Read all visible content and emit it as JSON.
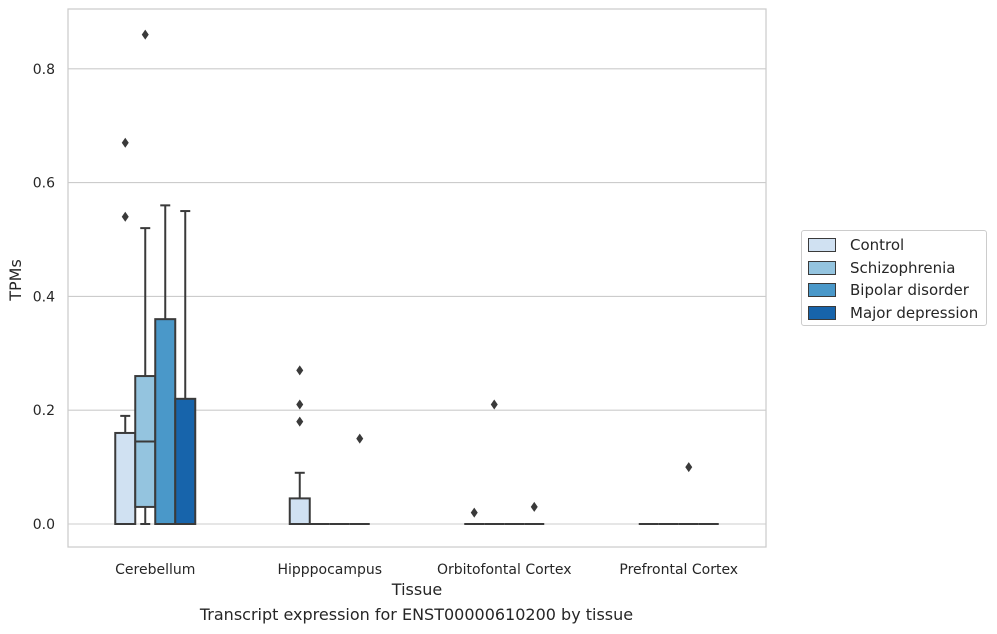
{
  "chart_data": {
    "type": "box",
    "categories": [
      "Cerebellum",
      "Hipppocampus",
      "Orbitofontal Cortex",
      "Prefrontal Cortex"
    ],
    "xlabel": "Tissue",
    "ylabel": "TPMs",
    "ylim": [
      -0.04,
      0.905
    ],
    "yticks": [
      0.0,
      0.2,
      0.4,
      0.6,
      0.8
    ],
    "ytick_labels": [
      "0.0",
      "0.2",
      "0.4",
      "0.6",
      "0.8"
    ],
    "grid": true,
    "legend_position": "right",
    "series": [
      {
        "name": "Control",
        "color": "#d0e1f2",
        "boxes": [
          {
            "q1": 0.0,
            "median": 0.0,
            "q3": 0.16,
            "whisker_low": 0.0,
            "whisker_high": 0.19,
            "outliers": [
              0.54,
              0.67
            ]
          },
          {
            "q1": 0.0,
            "median": 0.0,
            "q3": 0.045,
            "whisker_low": 0.0,
            "whisker_high": 0.09,
            "outliers": [
              0.18,
              0.21,
              0.27
            ]
          },
          {
            "q1": 0.0,
            "median": 0.0,
            "q3": 0.0,
            "whisker_low": 0.0,
            "whisker_high": 0.0,
            "outliers": [
              0.02
            ]
          },
          {
            "q1": 0.0,
            "median": 0.0,
            "q3": 0.0,
            "whisker_low": 0.0,
            "whisker_high": 0.0,
            "outliers": []
          }
        ]
      },
      {
        "name": "Schizophrenia",
        "color": "#94c4df",
        "boxes": [
          {
            "q1": 0.03,
            "median": 0.145,
            "q3": 0.26,
            "whisker_low": 0.0,
            "whisker_high": 0.52,
            "outliers": [
              0.86
            ]
          },
          {
            "q1": 0.0,
            "median": 0.0,
            "q3": 0.0,
            "whisker_low": 0.0,
            "whisker_high": 0.0,
            "outliers": []
          },
          {
            "q1": 0.0,
            "median": 0.0,
            "q3": 0.0,
            "whisker_low": 0.0,
            "whisker_high": 0.0,
            "outliers": [
              0.21
            ]
          },
          {
            "q1": 0.0,
            "median": 0.0,
            "q3": 0.0,
            "whisker_low": 0.0,
            "whisker_high": 0.0,
            "outliers": []
          }
        ]
      },
      {
        "name": "Bipolar disorder",
        "color": "#4a98c9",
        "boxes": [
          {
            "q1": 0.0,
            "median": 0.0,
            "q3": 0.36,
            "whisker_low": 0.0,
            "whisker_high": 0.56,
            "outliers": []
          },
          {
            "q1": 0.0,
            "median": 0.0,
            "q3": 0.0,
            "whisker_low": 0.0,
            "whisker_high": 0.0,
            "outliers": []
          },
          {
            "q1": 0.0,
            "median": 0.0,
            "q3": 0.0,
            "whisker_low": 0.0,
            "whisker_high": 0.0,
            "outliers": []
          },
          {
            "q1": 0.0,
            "median": 0.0,
            "q3": 0.0,
            "whisker_low": 0.0,
            "whisker_high": 0.0,
            "outliers": [
              0.1
            ]
          }
        ]
      },
      {
        "name": "Major depression",
        "color": "#1764ab",
        "boxes": [
          {
            "q1": 0.0,
            "median": 0.0,
            "q3": 0.22,
            "whisker_low": 0.0,
            "whisker_high": 0.55,
            "outliers": []
          },
          {
            "q1": 0.0,
            "median": 0.0,
            "q3": 0.0,
            "whisker_low": 0.0,
            "whisker_high": 0.0,
            "outliers": [
              0.15
            ]
          },
          {
            "q1": 0.0,
            "median": 0.0,
            "q3": 0.0,
            "whisker_low": 0.0,
            "whisker_high": 0.0,
            "outliers": [
              0.03
            ]
          },
          {
            "q1": 0.0,
            "median": 0.0,
            "q3": 0.0,
            "whisker_low": 0.0,
            "whisker_high": 0.0,
            "outliers": []
          }
        ]
      }
    ]
  },
  "caption": "Transcript expression for ENST00000610200 by tissue",
  "colors": {
    "grid": "#cccccc",
    "axes_edge": "#cccccc",
    "box_edge": "#3a3a3a",
    "text": "#262626"
  }
}
